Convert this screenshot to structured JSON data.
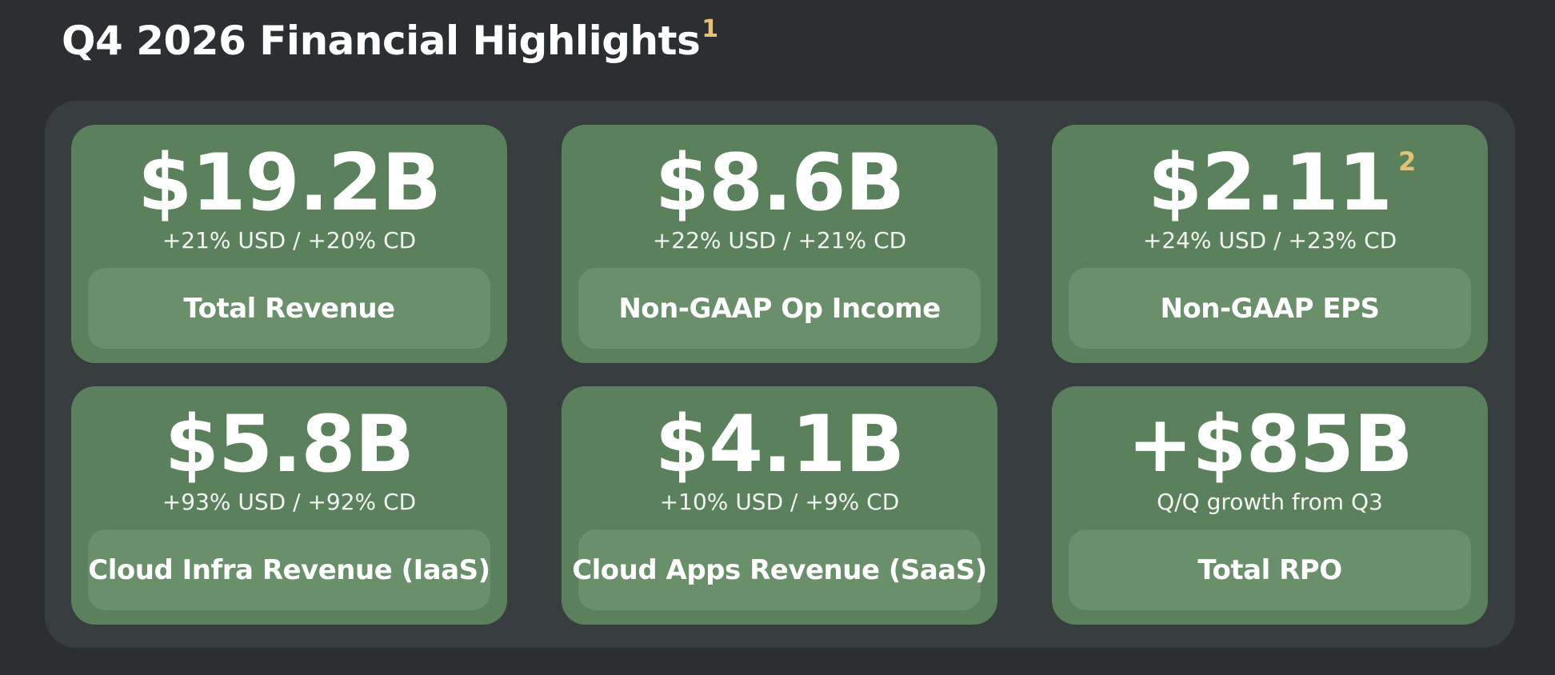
{
  "header": {
    "title": "Q4 2026 Financial Highlights",
    "title_footnote": "1"
  },
  "colors": {
    "background": "#2b2f31",
    "panel": "#383e40",
    "card": "#5a815b",
    "label_box": "#6a8f6b",
    "footnote": "#e2c27a"
  },
  "cards": [
    {
      "value": "$19.2B",
      "footnote": "",
      "growth": "+21% USD / +20% CD",
      "label": "Total Revenue"
    },
    {
      "value": "$8.6B",
      "footnote": "",
      "growth": "+22% USD / +21% CD",
      "label": "Non-GAAP Op Income"
    },
    {
      "value": "$2.11",
      "footnote": "2",
      "growth": "+24% USD / +23% CD",
      "label": "Non-GAAP EPS"
    },
    {
      "value": "$5.8B",
      "footnote": "",
      "growth": "+93% USD / +92% CD",
      "label": "Cloud Infra Revenue (IaaS)"
    },
    {
      "value": "$4.1B",
      "footnote": "",
      "growth": "+10% USD / +9% CD",
      "label": "Cloud Apps Revenue (SaaS)"
    },
    {
      "value": "+$85B",
      "footnote": "",
      "growth": "Q/Q growth from Q3",
      "label": "Total RPO"
    }
  ]
}
